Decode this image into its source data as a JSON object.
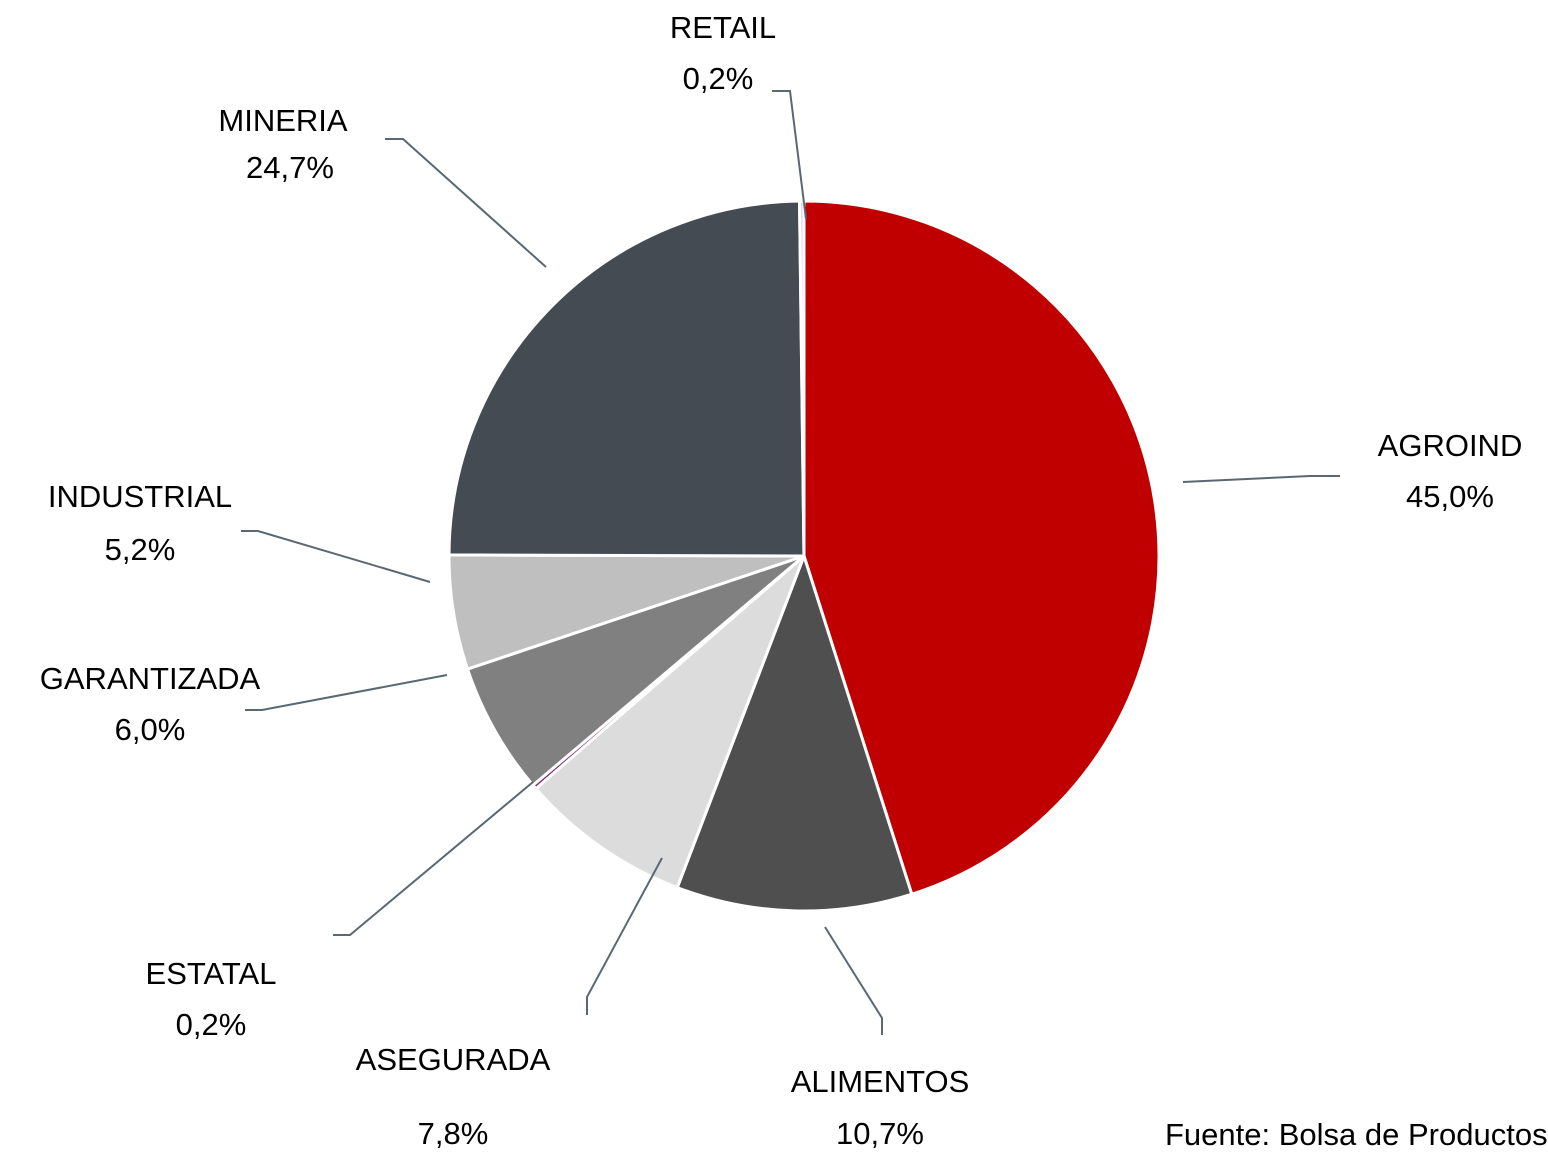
{
  "chart_data": {
    "type": "pie",
    "categories": [
      "AGROIND",
      "ALIMENTOS",
      "ASEGURADA",
      "ESTATAL",
      "GARANTIZADA",
      "INDUSTRIAL",
      "MINERIA",
      "RETAIL"
    ],
    "values": [
      45,
      10.7,
      7.8,
      0.2,
      6,
      5.2,
      24.7,
      0.2
    ],
    "value_labels": [
      "45,0%",
      "10,7%",
      "7,8%",
      "0,2%",
      "6,0%",
      "5,2%",
      "24,7%",
      "0,2%"
    ],
    "colors": [
      "#c00000",
      "#4f4f4f",
      "#dcdcdc",
      "#7b1f6e",
      "#808080",
      "#bfbfbf",
      "#444b53",
      "#dcd6f0"
    ],
    "source": "Fuente: Bolsa de Productos"
  }
}
